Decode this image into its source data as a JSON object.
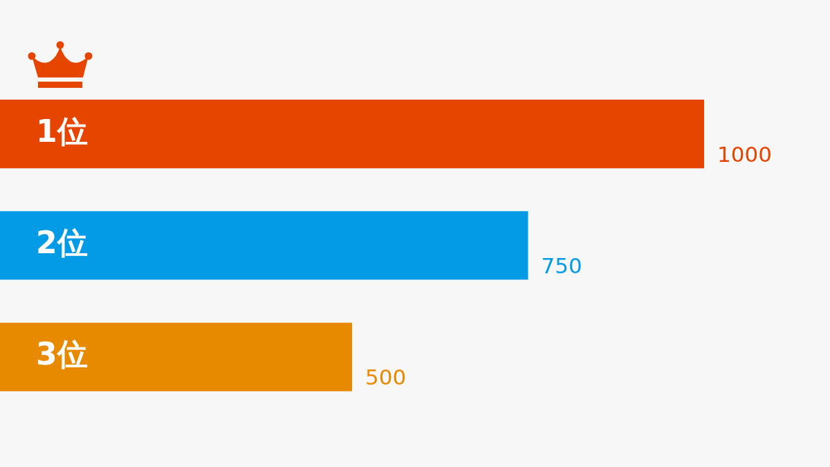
{
  "chart_data": {
    "type": "bar",
    "orientation": "horizontal",
    "categories": [
      "1位",
      "2位",
      "3位"
    ],
    "values": [
      1000,
      750,
      500
    ],
    "colors": [
      "#e64500",
      "#039be5",
      "#e88a00"
    ],
    "data_labels": true,
    "tick_labels": "y"
  }
}
